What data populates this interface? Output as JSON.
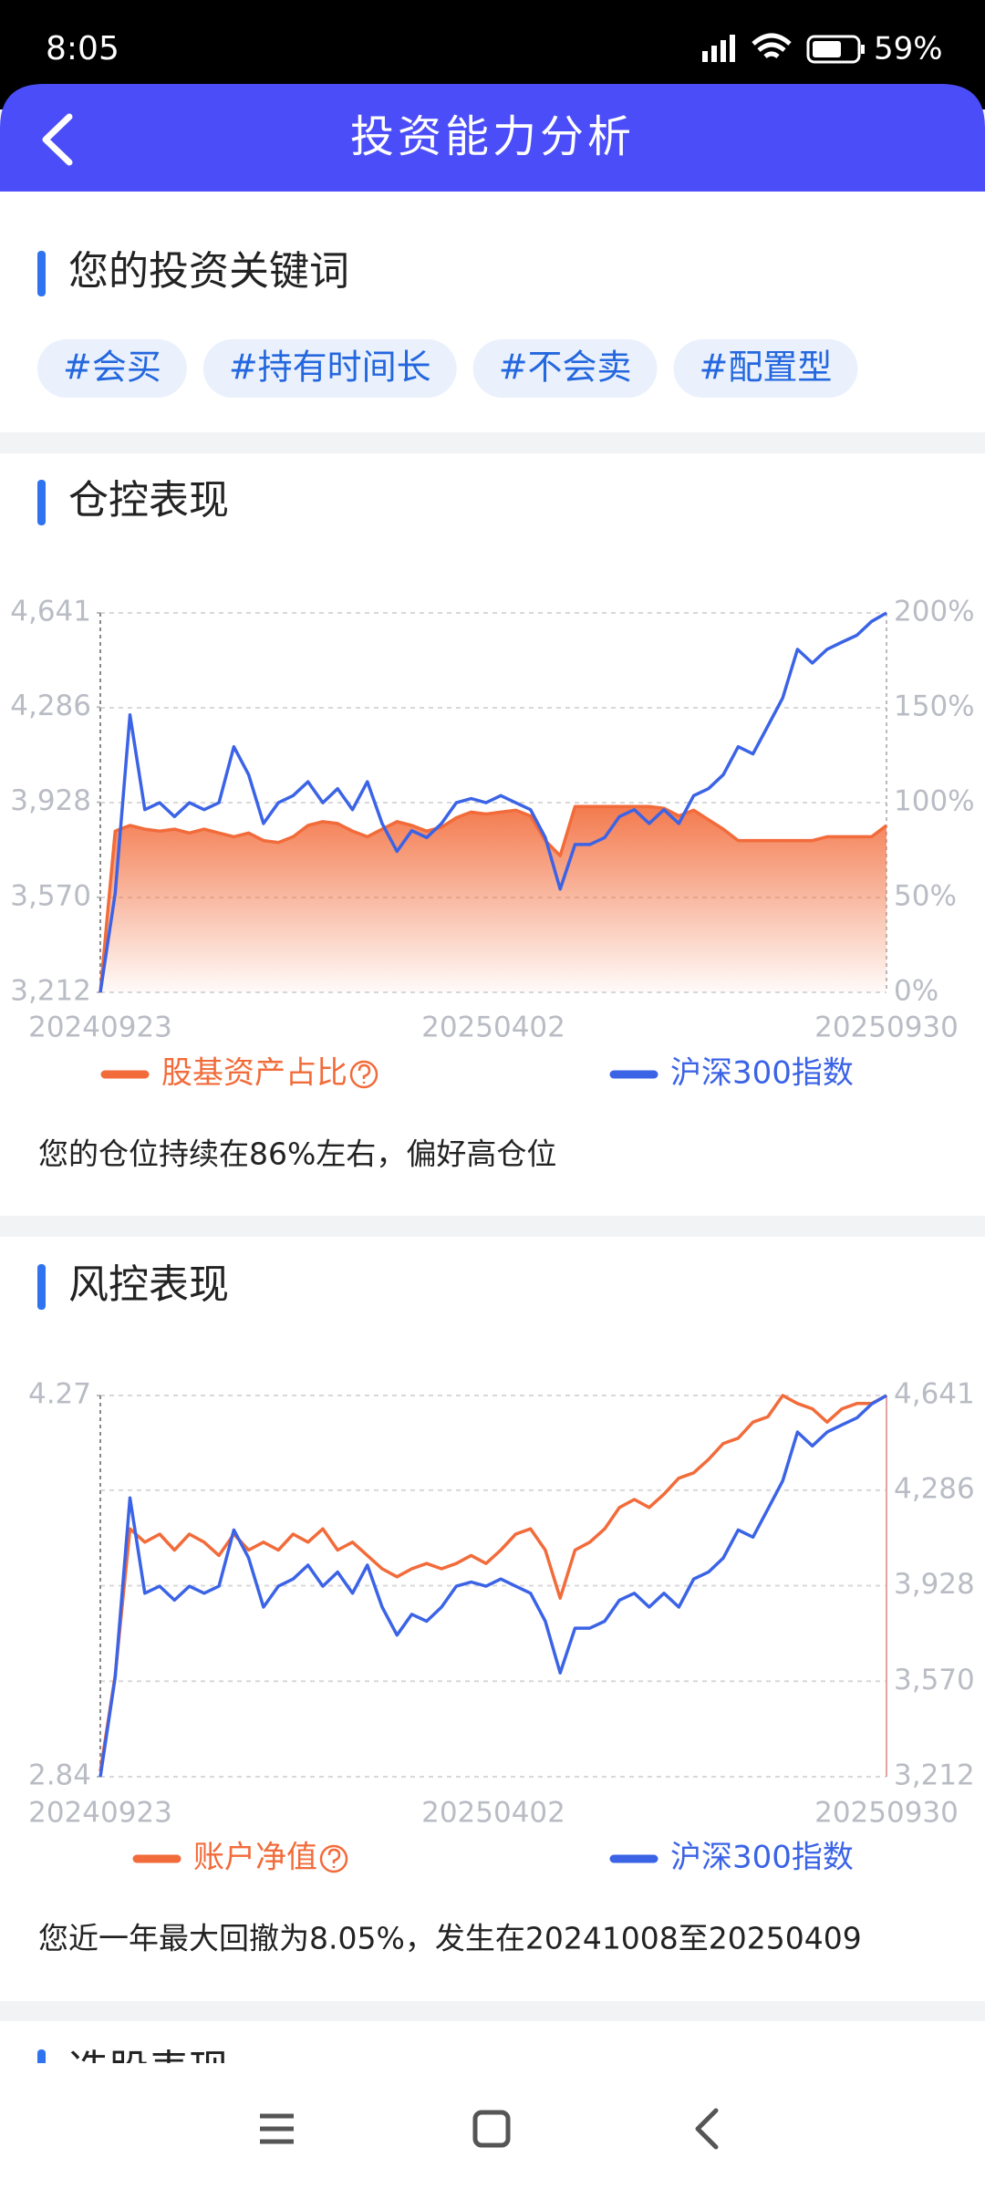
{
  "status_bar": {
    "time": "8:05",
    "battery": "59%"
  },
  "header": {
    "title": "投资能力分析"
  },
  "keywords": {
    "title": "您的投资关键词",
    "tags": [
      "#会买",
      "#持有时间长",
      "#不会卖",
      "#配置型"
    ]
  },
  "position_chart": {
    "type": "line",
    "title": "仓控表现",
    "x_labels": [
      "20240923",
      "20250402",
      "20250930"
    ],
    "ylim": [
      3212,
      4641
    ],
    "yticks": [
      {
        "value": 4641,
        "label": "4,641"
      },
      {
        "value": 4286,
        "label": "4,286"
      },
      {
        "value": 3928,
        "label": "3,928"
      },
      {
        "value": 3570,
        "label": "3,570"
      },
      {
        "value": 3212,
        "label": "3,212"
      }
    ],
    "y2lim": [
      0,
      200
    ],
    "y2ticks": [
      {
        "value": 200,
        "label": "200%"
      },
      {
        "value": 150,
        "label": "150%"
      },
      {
        "value": 100,
        "label": "100%"
      },
      {
        "value": 50,
        "label": "50%"
      },
      {
        "value": 0,
        "label": "0%"
      }
    ],
    "grid": true,
    "series": [
      {
        "name": "股基资产占比",
        "color": "#F26B3A",
        "axis": "y2",
        "area": true,
        "values": [
          0,
          85,
          88,
          86,
          85,
          86,
          84,
          86,
          84,
          82,
          84,
          80,
          79,
          82,
          88,
          90,
          89,
          85,
          82,
          86,
          90,
          88,
          85,
          87,
          92,
          95,
          94,
          95,
          96,
          93,
          80,
          72,
          98,
          98,
          98,
          98,
          98,
          98,
          97,
          93,
          96,
          91,
          86,
          80,
          80,
          80,
          80,
          80,
          80,
          82,
          82,
          82,
          82,
          88
        ]
      },
      {
        "name": "沪深300指数",
        "color": "#3B63E6",
        "axis": "y",
        "values": [
          3212,
          3585,
          4257,
          3900,
          3926,
          3874,
          3926,
          3900,
          3926,
          4137,
          4032,
          3848,
          3926,
          3953,
          4005,
          3926,
          3979,
          3900,
          4005,
          3848,
          3743,
          3821,
          3795,
          3848,
          3926,
          3942,
          3926,
          3953,
          3926,
          3900,
          3795,
          3601,
          3769,
          3769,
          3795,
          3874,
          3900,
          3848,
          3900,
          3848,
          3953,
          3979,
          4032,
          4137,
          4110,
          4215,
          4321,
          4504,
          4452,
          4504,
          4531,
          4557,
          4609,
          4641
        ]
      }
    ],
    "note": "您的仓位持续在86%左右，偏好高仓位"
  },
  "risk_chart": {
    "type": "line",
    "title": "风控表现",
    "x_labels": [
      "20240923",
      "20250402",
      "20250930"
    ],
    "ylim": [
      2.84,
      4.27
    ],
    "yticks": [
      4.27,
      2.84
    ],
    "y2lim": [
      3212,
      4641
    ],
    "y2ticks": [
      {
        "value": 4641,
        "label": "4,641"
      },
      {
        "value": 4286,
        "label": "4,286"
      },
      {
        "value": 3928,
        "label": "3,928"
      },
      {
        "value": 3570,
        "label": "3,570"
      },
      {
        "value": 3212,
        "label": "3,212"
      }
    ],
    "grid": true,
    "series": [
      {
        "name": "账户净值",
        "color": "#F26B3A",
        "axis": "y",
        "values": [
          2.86,
          3.22,
          3.77,
          3.72,
          3.75,
          3.69,
          3.75,
          3.72,
          3.67,
          3.75,
          3.69,
          3.72,
          3.69,
          3.75,
          3.72,
          3.77,
          3.69,
          3.72,
          3.67,
          3.62,
          3.59,
          3.62,
          3.64,
          3.62,
          3.64,
          3.67,
          3.64,
          3.69,
          3.75,
          3.77,
          3.69,
          3.51,
          3.69,
          3.72,
          3.77,
          3.85,
          3.88,
          3.85,
          3.9,
          3.96,
          3.98,
          4.03,
          4.09,
          4.11,
          4.17,
          4.19,
          4.27,
          4.24,
          4.22,
          4.17,
          4.22,
          4.24,
          4.24,
          4.27
        ]
      },
      {
        "name": "沪深300指数",
        "color": "#3B63E6",
        "axis": "y2",
        "values": [
          3212,
          3585,
          4257,
          3900,
          3926,
          3874,
          3926,
          3900,
          3926,
          4137,
          4032,
          3848,
          3926,
          3953,
          4005,
          3926,
          3979,
          3900,
          4005,
          3848,
          3743,
          3821,
          3795,
          3848,
          3926,
          3942,
          3926,
          3953,
          3926,
          3900,
          3795,
          3601,
          3769,
          3769,
          3795,
          3874,
          3900,
          3848,
          3900,
          3848,
          3953,
          3979,
          4032,
          4137,
          4110,
          4215,
          4321,
          4504,
          4452,
          4504,
          4531,
          4557,
          4609,
          4641
        ]
      }
    ],
    "note": "您近一年最大回撤为8.05%，发生在20241008至20250409"
  },
  "next_section": {
    "title": "选股表现"
  }
}
